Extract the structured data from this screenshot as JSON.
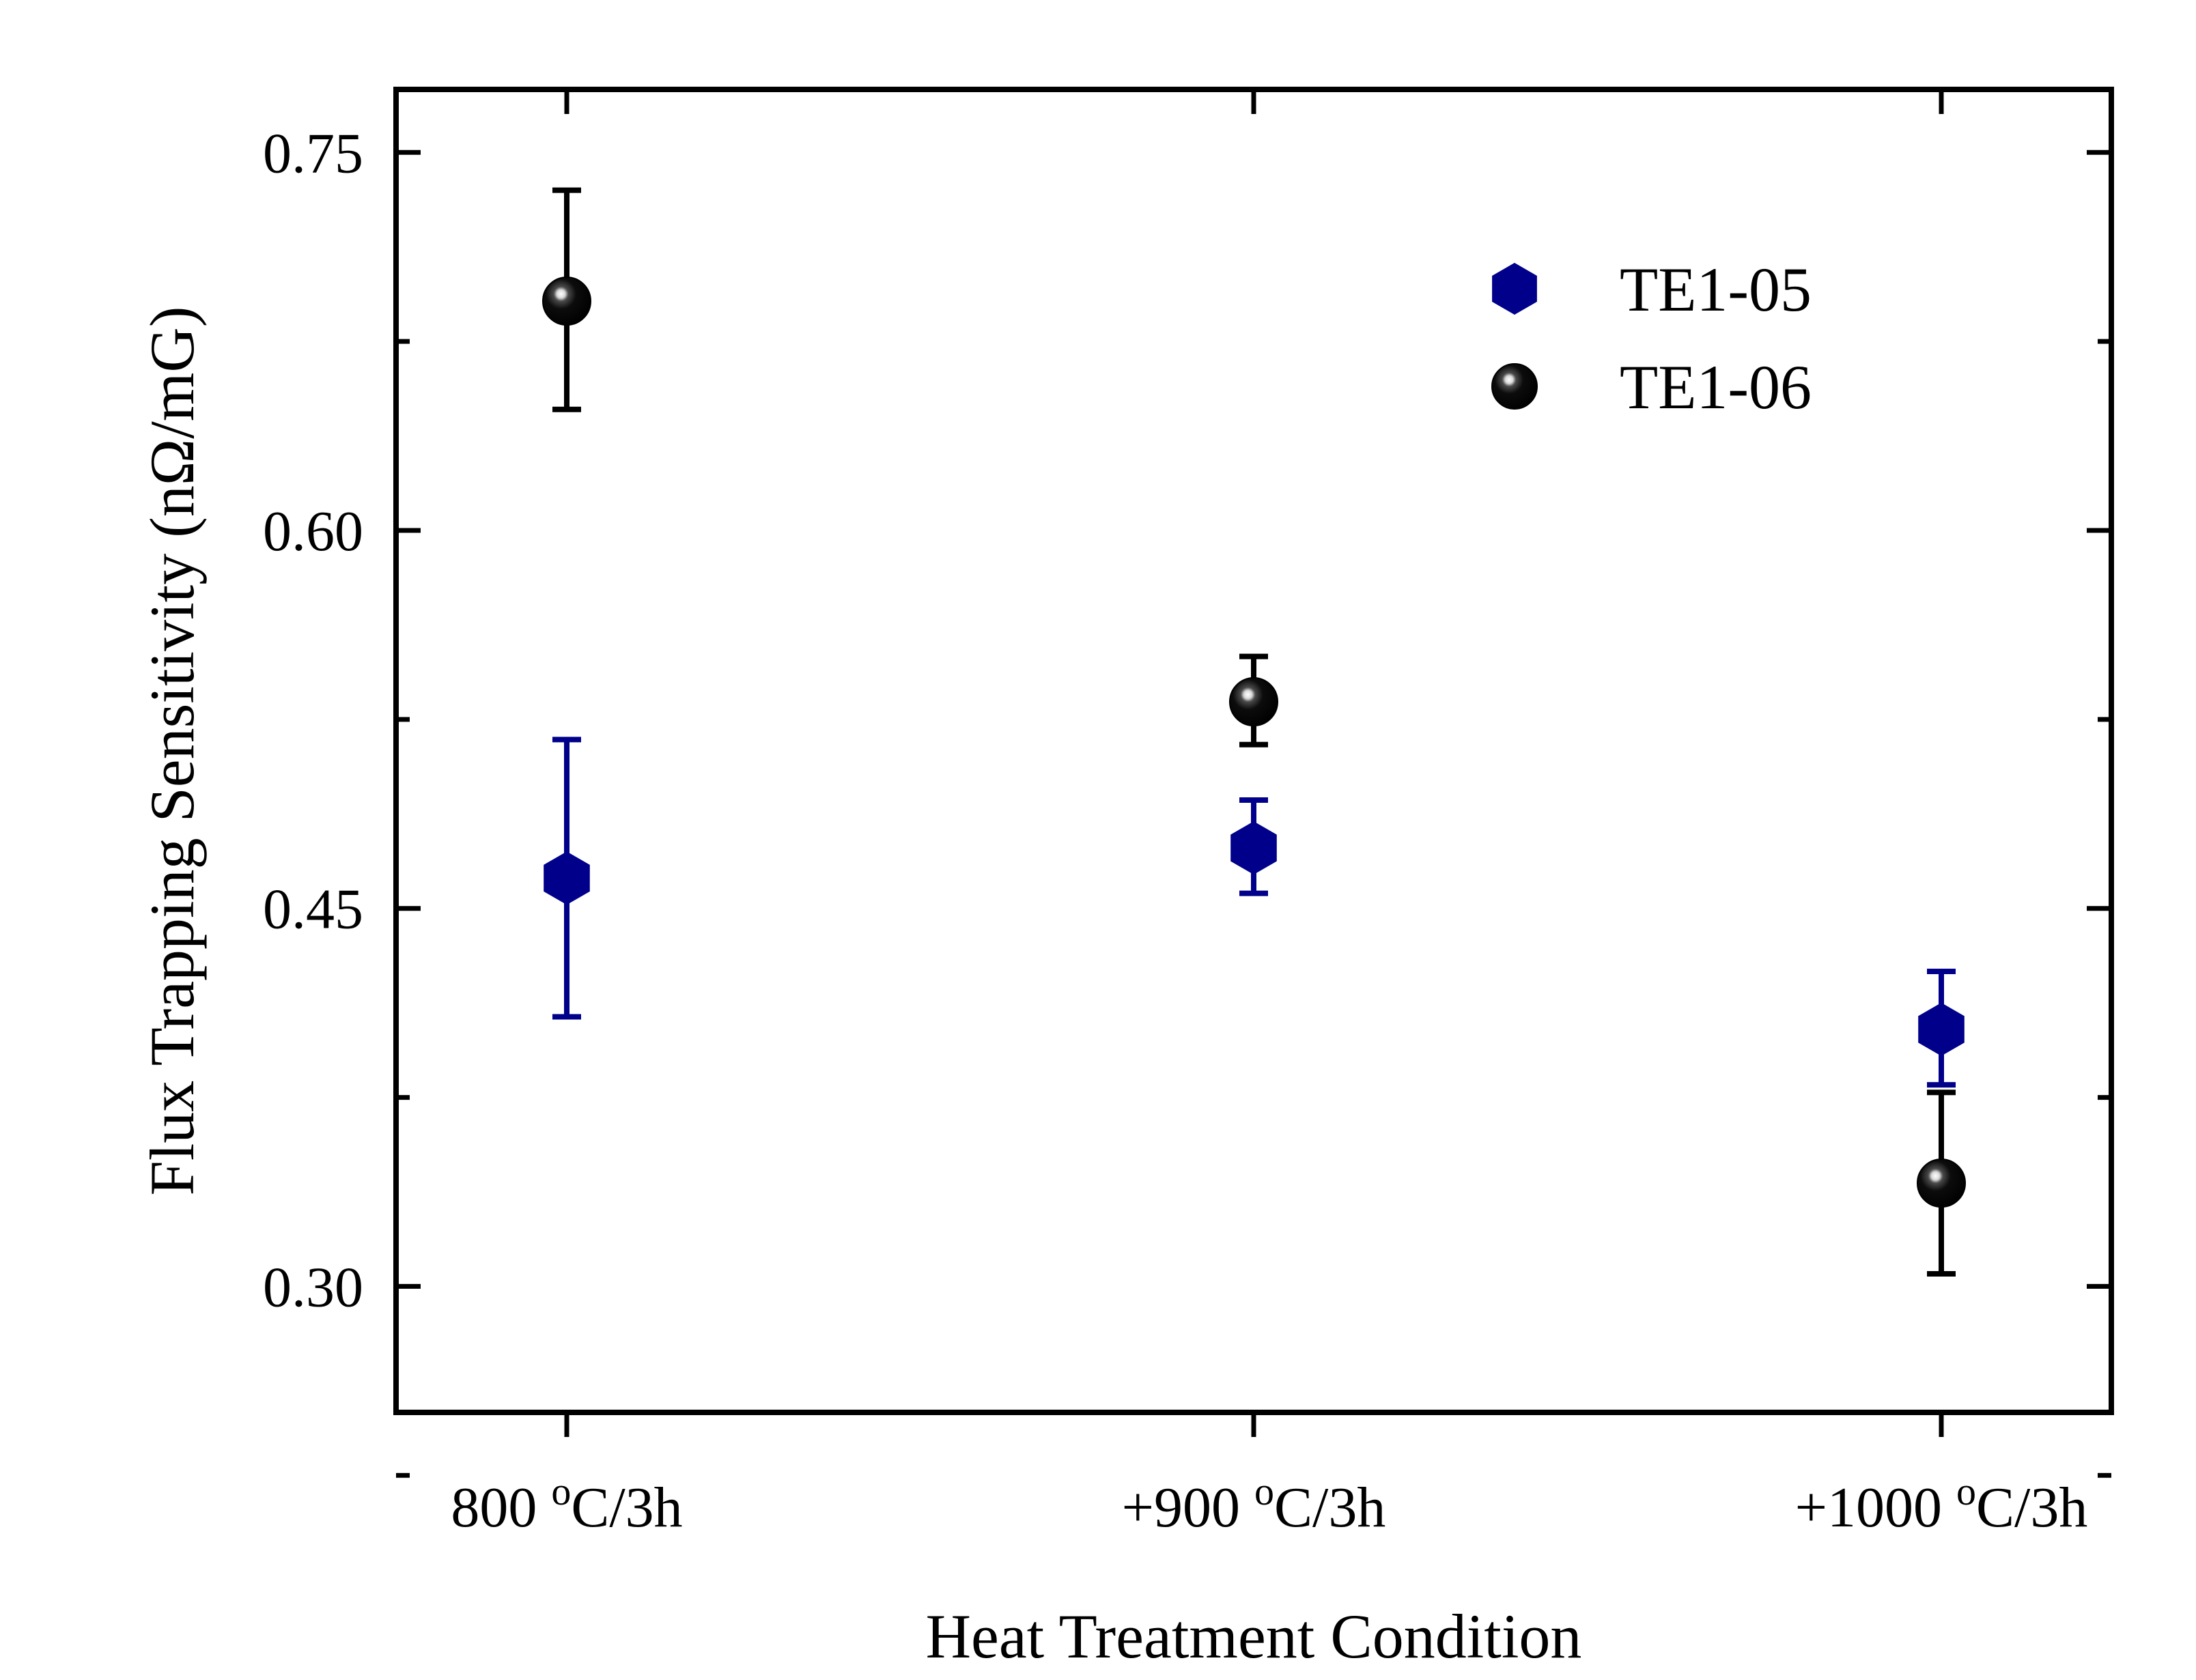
{
  "chart_data": {
    "type": "scatter",
    "title": "",
    "xlabel": "Heat Treatment Condition",
    "ylabel": "Flux Trapping Sensitivity (nΩ/mG)",
    "categories": [
      "800 °C/3h",
      "+900 °C/3h",
      "+1000 °C/3h"
    ],
    "category_labels": [
      {
        "prefix": "800 ",
        "sup": "o",
        "suffix": "C/3h"
      },
      {
        "prefix": "+900 ",
        "sup": "o",
        "suffix": "C/3h"
      },
      {
        "prefix": "+1000 ",
        "sup": "o",
        "suffix": "C/3h"
      }
    ],
    "ylim": [
      0.25,
      0.775
    ],
    "yticks": [
      0.3,
      0.45,
      0.6,
      0.75
    ],
    "ytick_labels": [
      "0.30",
      "0.45",
      "0.60",
      "0.75"
    ],
    "grid": false,
    "legend_position": "top-right",
    "series": [
      {
        "name": "TE1-05",
        "marker": "hexagon",
        "color": "#00008b",
        "values": [
          0.462,
          0.474,
          0.402
        ],
        "errors_low": [
          0.407,
          0.456,
          0.38
        ],
        "errors_high": [
          0.517,
          0.493,
          0.425
        ]
      },
      {
        "name": "TE1-06",
        "marker": "sphere",
        "color": "#000000",
        "values": [
          0.691,
          0.532,
          0.341
        ],
        "errors_low": [
          0.648,
          0.515,
          0.305
        ],
        "errors_high": [
          0.735,
          0.55,
          0.377
        ]
      }
    ]
  }
}
